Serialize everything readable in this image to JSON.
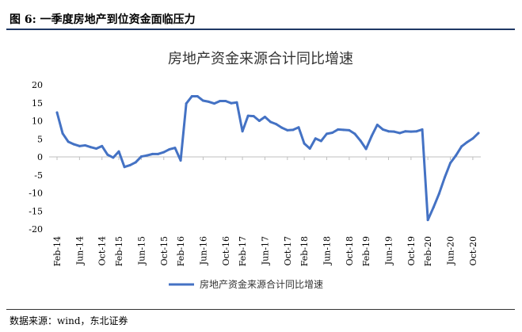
{
  "figure": {
    "label": "图 6:",
    "title": "一季度房地产到位资金面临压力",
    "source": "数据来源：wind，东北证券"
  },
  "chart_data": {
    "type": "line",
    "title": "房地产资金来源合计同比增速",
    "xlabel": "",
    "ylabel": "",
    "ylim": [
      -20,
      20
    ],
    "yticks": [
      -20,
      -15,
      -10,
      -5,
      0,
      5,
      10,
      15,
      20
    ],
    "grid": false,
    "legend_position": "bottom",
    "x_tick_labels": [
      "Feb-14",
      "Jun-14",
      "Oct-14",
      "Feb-15",
      "Jun-15",
      "Oct-15",
      "Feb-16",
      "Jun-16",
      "Oct-16",
      "Feb-17",
      "Jun-17",
      "Oct-17",
      "Feb-18",
      "Jun-18",
      "Oct-18",
      "Feb-19",
      "Jun-19",
      "Oct-19",
      "Feb-20",
      "Jun-20",
      "Oct-20"
    ],
    "series": [
      {
        "name": "房地产资金来源合计同比增速",
        "color": "#4472c4",
        "x": [
          "Feb-14",
          "Mar-14",
          "Apr-14",
          "May-14",
          "Jun-14",
          "Jul-14",
          "Aug-14",
          "Sep-14",
          "Oct-14",
          "Nov-14",
          "Dec-14",
          "Feb-15",
          "Mar-15",
          "Apr-15",
          "May-15",
          "Jun-15",
          "Jul-15",
          "Aug-15",
          "Sep-15",
          "Oct-15",
          "Nov-15",
          "Dec-15",
          "Feb-16",
          "Mar-16",
          "Apr-16",
          "May-16",
          "Jun-16",
          "Jul-16",
          "Aug-16",
          "Sep-16",
          "Oct-16",
          "Nov-16",
          "Dec-16",
          "Feb-17",
          "Mar-17",
          "Apr-17",
          "May-17",
          "Jun-17",
          "Jul-17",
          "Aug-17",
          "Sep-17",
          "Oct-17",
          "Nov-17",
          "Dec-17",
          "Feb-18",
          "Mar-18",
          "Apr-18",
          "May-18",
          "Jun-18",
          "Jul-18",
          "Aug-18",
          "Sep-18",
          "Oct-18",
          "Nov-18",
          "Dec-18",
          "Feb-19",
          "Mar-19",
          "Apr-19",
          "May-19",
          "Jun-19",
          "Jul-19",
          "Aug-19",
          "Sep-19",
          "Oct-19",
          "Nov-19",
          "Dec-19",
          "Feb-20",
          "Mar-20",
          "Apr-20",
          "May-20",
          "Jun-20",
          "Jul-20",
          "Aug-20",
          "Sep-20",
          "Oct-20",
          "Nov-20"
        ],
        "values": [
          12.3,
          6.5,
          4.2,
          3.5,
          3.0,
          3.2,
          2.7,
          2.3,
          3.0,
          0.6,
          -0.2,
          1.5,
          -2.8,
          -2.3,
          -1.5,
          0.1,
          0.4,
          0.8,
          0.8,
          1.3,
          2.1,
          2.5,
          -1.0,
          14.8,
          16.8,
          16.8,
          15.6,
          15.3,
          14.8,
          15.5,
          15.5,
          14.9,
          15.1,
          7.1,
          11.4,
          11.3,
          10.0,
          11.1,
          9.7,
          9.1,
          8.1,
          7.4,
          7.5,
          8.2,
          3.7,
          2.3,
          5.1,
          4.4,
          6.4,
          6.7,
          7.6,
          7.5,
          7.4,
          6.4,
          4.5,
          2.2,
          5.8,
          8.9,
          7.6,
          7.1,
          7.0,
          6.6,
          7.1,
          7.0,
          7.1,
          7.6,
          -17.5,
          -14.0,
          -10.2,
          -5.7,
          -1.7,
          0.4,
          2.9,
          4.1,
          5.1,
          6.6
        ]
      }
    ]
  }
}
